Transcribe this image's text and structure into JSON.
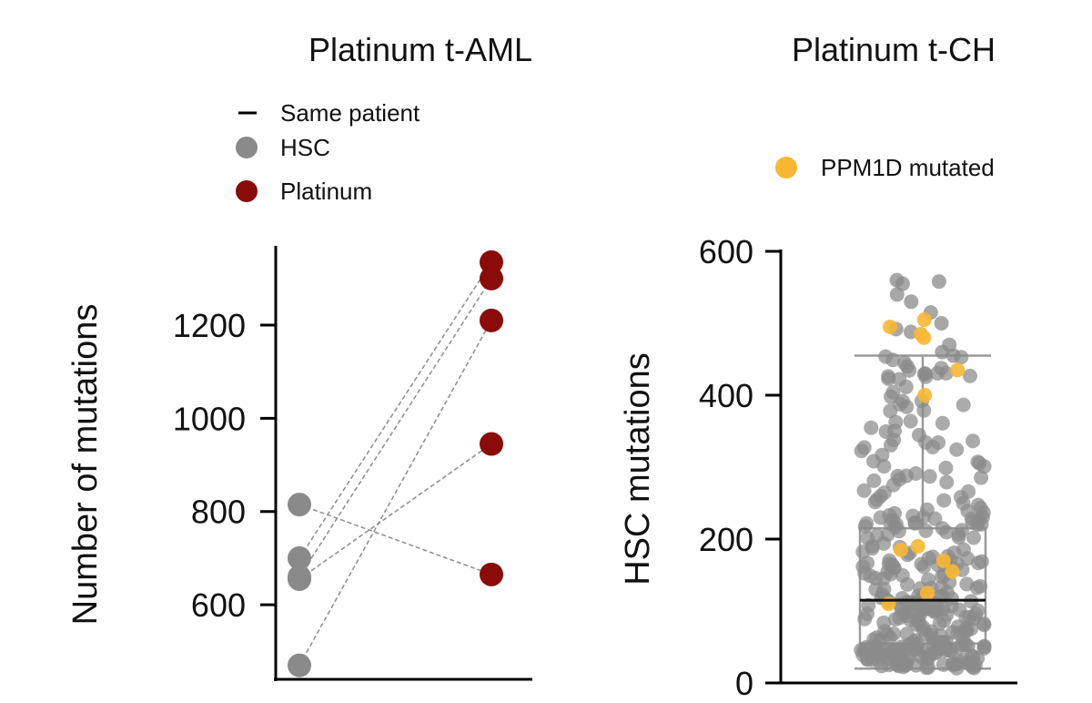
{
  "chart_data": [
    {
      "type": "scatter",
      "title": "Platinum t-AML",
      "xlabel": "",
      "ylabel": "Number of mutations",
      "ylim": [
        440,
        1370
      ],
      "yticks": [
        600,
        800,
        1000,
        1200
      ],
      "legend": {
        "position": "top",
        "items": [
          {
            "label": "Same patient",
            "marker": "line",
            "color": "#000000"
          },
          {
            "label": "HSC",
            "marker": "circle",
            "color": "#8a8a8a"
          },
          {
            "label": "Platinum",
            "marker": "circle",
            "color": "#8b0a0a"
          }
        ]
      },
      "groups": [
        "HSC",
        "Platinum"
      ],
      "pairs": [
        {
          "hsc": 815,
          "platinum": 665
        },
        {
          "hsc": 700,
          "platinum": 1335
        },
        {
          "hsc": 660,
          "platinum": 1300
        },
        {
          "hsc": 655,
          "platinum": 945
        },
        {
          "hsc": 470,
          "platinum": 1210
        }
      ]
    },
    {
      "type": "box",
      "title": "Platinum t-CH",
      "xlabel": "",
      "ylabel": "HSC mutations",
      "ylim": [
        0,
        600
      ],
      "yticks": [
        0,
        200,
        400,
        600
      ],
      "legend": {
        "position": "top-right",
        "items": [
          {
            "label": "PPM1D mutated",
            "marker": "circle",
            "color": "#f7b731"
          }
        ]
      },
      "box": {
        "whisker_low": 20,
        "q1": 55,
        "median": 115,
        "q3": 215,
        "whisker_high": 455
      },
      "colors": {
        "point": "#8a8a8a",
        "highlight": "#f7b731"
      },
      "n_points": 320,
      "highlight_values": [
        505,
        495,
        480,
        485,
        435,
        400,
        190,
        185,
        155,
        170,
        125,
        110
      ],
      "outlier_values": [
        560,
        558,
        555,
        540,
        530,
        515,
        500,
        492,
        488,
        470,
        460,
        455,
        445,
        440,
        430
      ]
    }
  ]
}
